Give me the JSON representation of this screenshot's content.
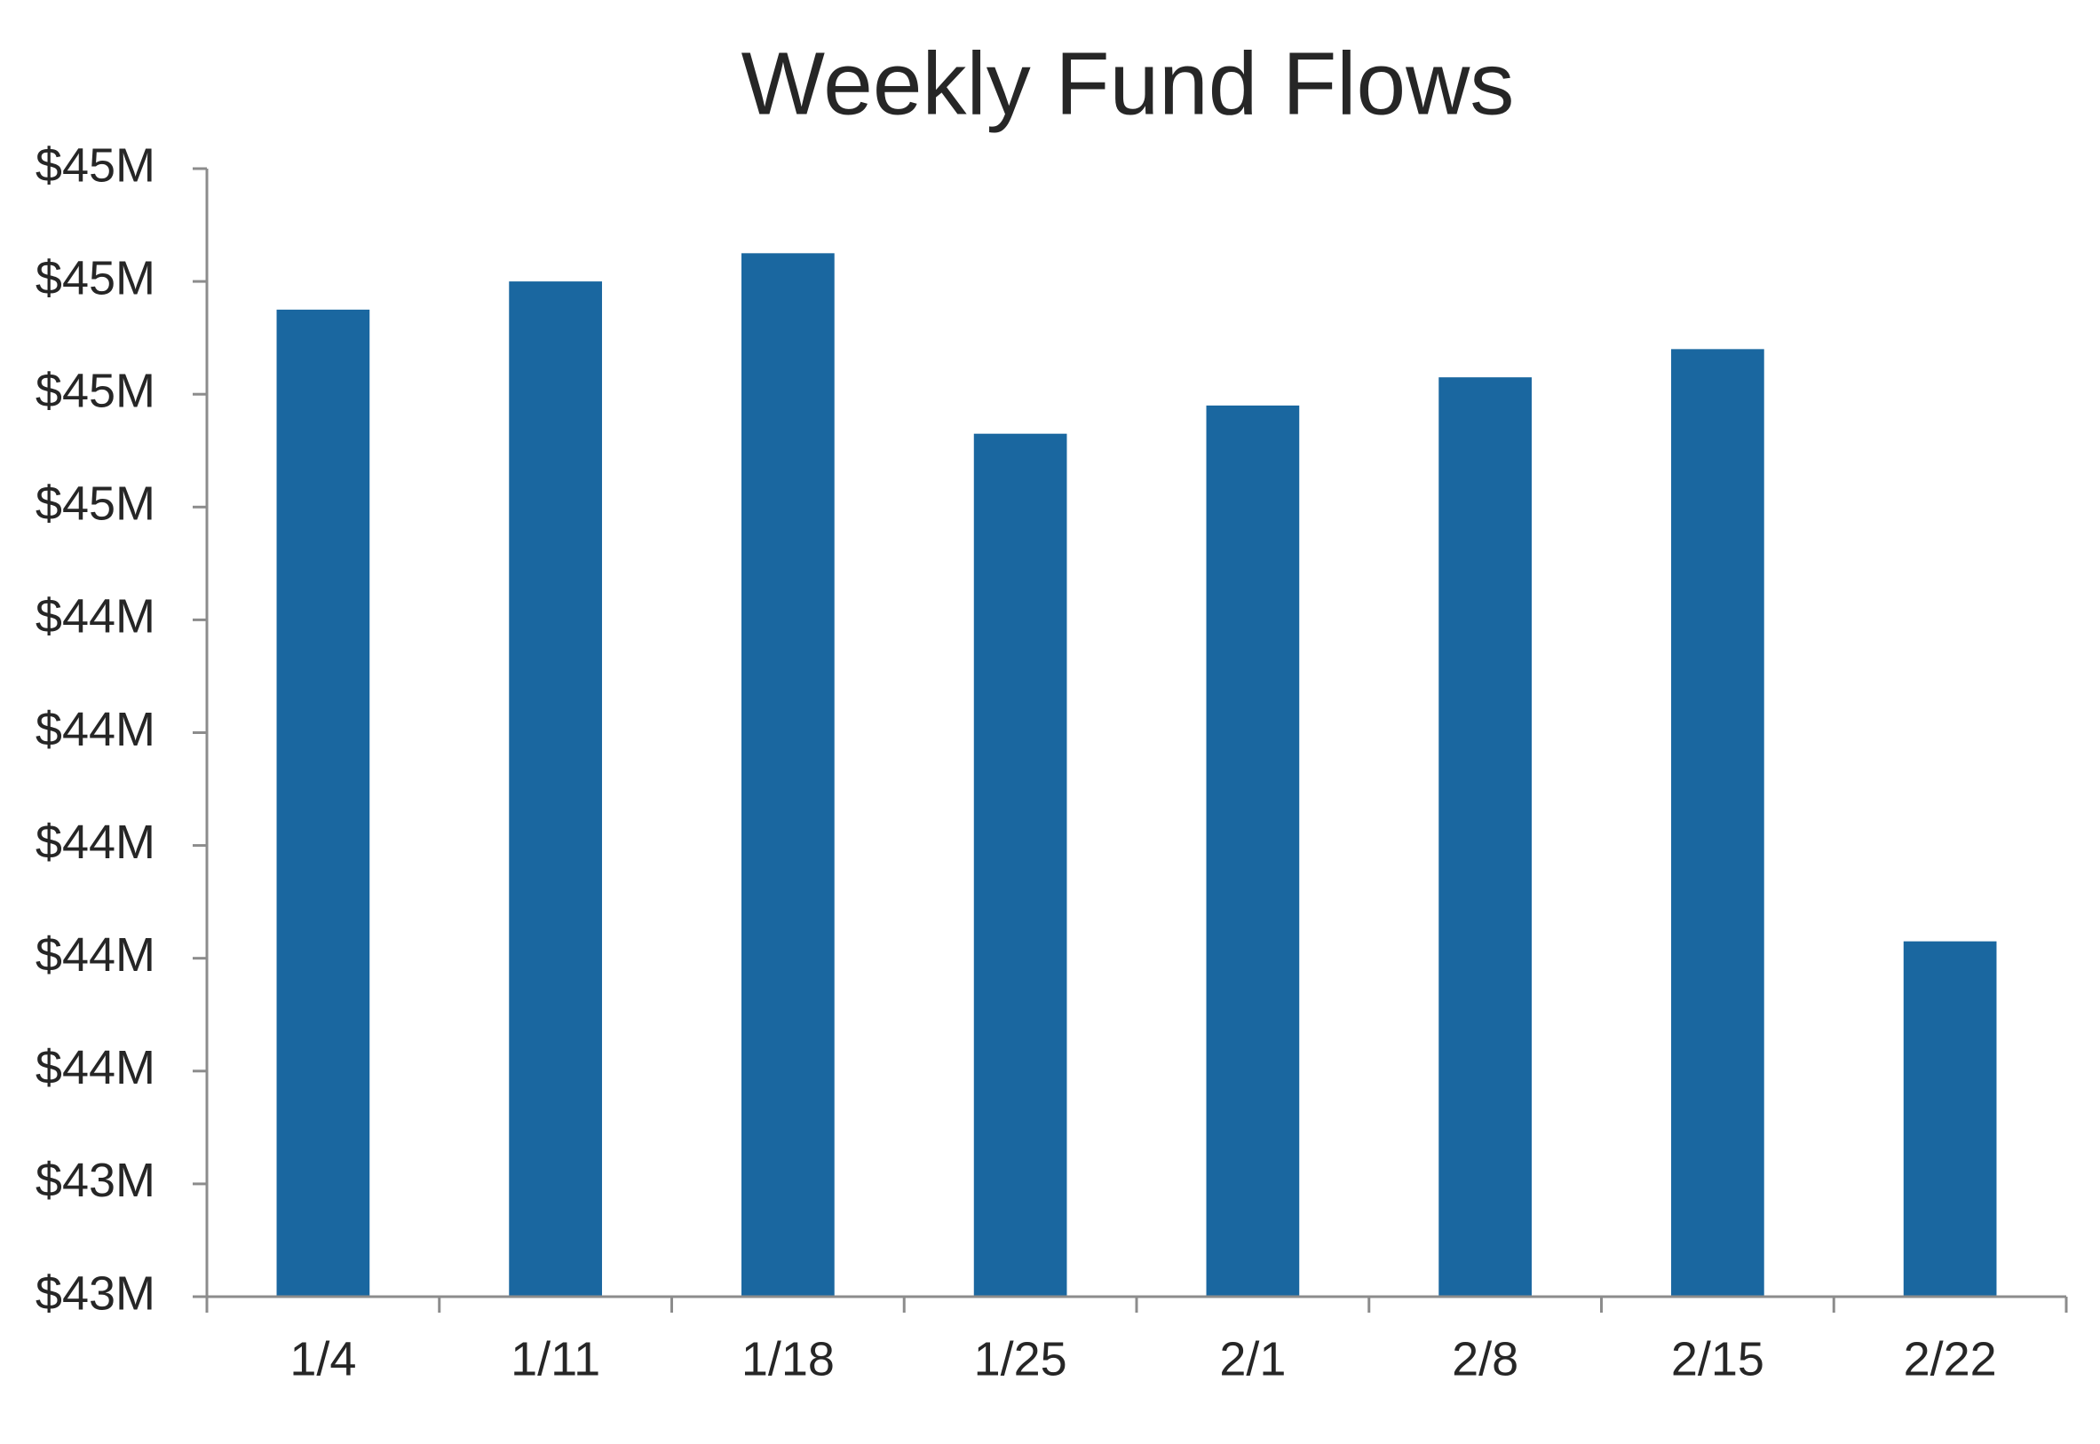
{
  "chart_data": {
    "type": "bar",
    "title": "Weekly Fund Flows",
    "categories": [
      "1/4",
      "1/11",
      "1/18",
      "1/25",
      "2/1",
      "2/8",
      "2/15",
      "2/22"
    ],
    "values": [
      44.85,
      44.9,
      44.95,
      44.63,
      44.68,
      44.73,
      44.78,
      43.73
    ],
    "color": "#1a67a0",
    "ylim": [
      43.1,
      45.1
    ],
    "yticks": [
      {
        "value": 43.1,
        "label": "$43M"
      },
      {
        "value": 43.3,
        "label": "$43M"
      },
      {
        "value": 43.5,
        "label": "$44M"
      },
      {
        "value": 43.7,
        "label": "$44M"
      },
      {
        "value": 43.9,
        "label": "$44M"
      },
      {
        "value": 44.1,
        "label": "$44M"
      },
      {
        "value": 44.3,
        "label": "$44M"
      },
      {
        "value": 44.5,
        "label": "$45M"
      },
      {
        "value": 44.7,
        "label": "$45M"
      },
      {
        "value": 44.9,
        "label": "$45M"
      },
      {
        "value": 45.1,
        "label": "$45M"
      }
    ],
    "grid": false
  }
}
